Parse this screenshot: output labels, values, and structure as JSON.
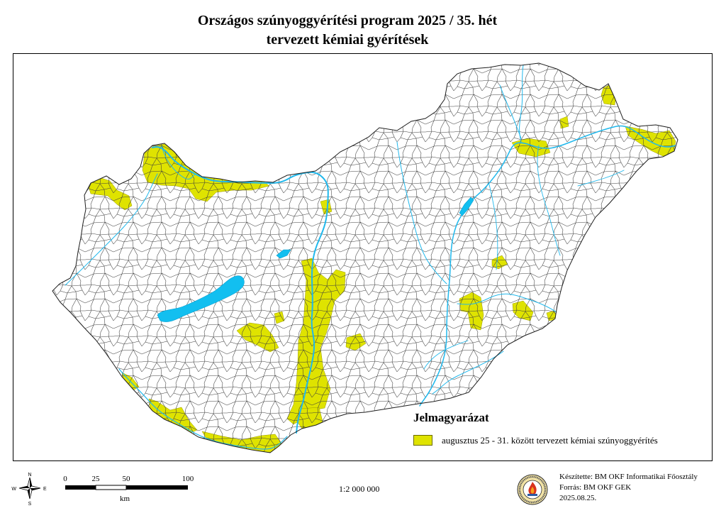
{
  "title": {
    "line1": "Országos szúnyoggyérítési program 2025 / 35. hét",
    "line2": "tervezett kémiai gyérítések"
  },
  "legend": {
    "title": "Jelmagyarázat",
    "items": [
      {
        "label": "augusztus 25 - 31. között tervezett kémiai szúnyoggyérítés",
        "color": "#dfe300"
      }
    ]
  },
  "compass": {
    "n": "N",
    "e": "E",
    "s": "S",
    "w": "W"
  },
  "scale_bar": {
    "ticks": [
      "0",
      "25",
      "50",
      "100"
    ],
    "unit": "km"
  },
  "scale_ratio": "1:2 000 000",
  "credits": {
    "author": "Készítette: BM OKF Informatikai Főosztály",
    "source": "Forrás: BM OKF GEK",
    "date": "2025.08.25."
  },
  "colors": {
    "treatment_area": "#dfe300",
    "water": "#20b8ec",
    "boundaries": "#3c3c3c",
    "frame": "#000000"
  }
}
